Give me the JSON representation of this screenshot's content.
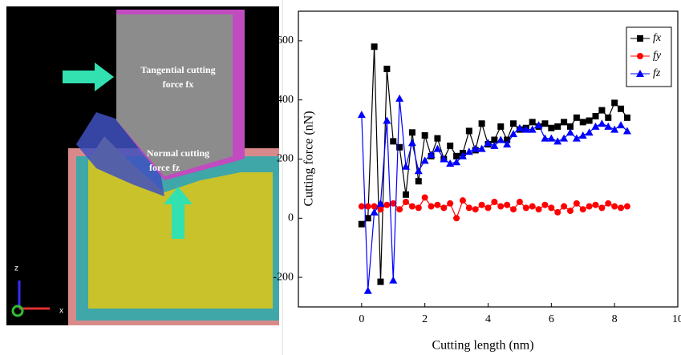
{
  "simulation": {
    "labels": [
      "Tangential  cutting",
      "force fx",
      "Normal cutting",
      "force fz",
      "z",
      "x"
    ]
  },
  "chart_data": {
    "type": "line",
    "xlabel": "Cutting length (nm)",
    "ylabel": "Cutting force (nN)",
    "x": [
      0,
      0.2,
      0.4,
      0.6,
      0.8,
      1.0,
      1.2,
      1.4,
      1.6,
      1.8,
      2.0,
      2.2,
      2.4,
      2.6,
      2.8,
      3.0,
      3.2,
      3.4,
      3.6,
      3.8,
      4.0,
      4.2,
      4.4,
      4.6,
      4.8,
      5.0,
      5.2,
      5.4,
      5.6,
      5.8,
      6.0,
      6.2,
      6.4,
      6.6,
      6.8,
      7.0,
      7.2,
      7.4,
      7.6,
      7.8,
      8.0,
      8.2,
      8.4
    ],
    "series": [
      {
        "name": "fx",
        "color": "#000000",
        "marker": "square",
        "values": [
          -20,
          0,
          580,
          -215,
          505,
          260,
          240,
          80,
          290,
          125,
          280,
          210,
          270,
          200,
          245,
          210,
          220,
          295,
          230,
          320,
          250,
          265,
          310,
          265,
          320,
          300,
          305,
          325,
          310,
          320,
          305,
          310,
          325,
          310,
          340,
          325,
          330,
          345,
          365,
          340,
          390,
          370,
          340
        ]
      },
      {
        "name": "fy",
        "color": "#ff0000",
        "marker": "circle",
        "values": [
          40,
          40,
          40,
          30,
          45,
          50,
          30,
          55,
          40,
          35,
          70,
          40,
          45,
          35,
          50,
          0,
          60,
          35,
          30,
          45,
          35,
          55,
          40,
          45,
          30,
          55,
          35,
          40,
          30,
          45,
          35,
          20,
          40,
          25,
          50,
          30,
          40,
          45,
          35,
          50,
          40,
          35,
          40
        ]
      },
      {
        "name": "fz",
        "color": "#0000ff",
        "marker": "triangle",
        "values": [
          350,
          -245,
          20,
          50,
          330,
          -210,
          405,
          175,
          255,
          160,
          195,
          215,
          235,
          200,
          185,
          190,
          210,
          225,
          235,
          235,
          255,
          245,
          265,
          250,
          285,
          305,
          300,
          300,
          315,
          270,
          270,
          260,
          270,
          290,
          270,
          280,
          290,
          310,
          320,
          310,
          300,
          315,
          295
        ]
      }
    ],
    "xlim": [
      -2,
      10
    ],
    "xticks": [
      0,
      2,
      4,
      6,
      8,
      10
    ],
    "ylim": [
      -300,
      700
    ],
    "yticks": [
      -200,
      0,
      200,
      400,
      600
    ],
    "legend": "upper right"
  }
}
